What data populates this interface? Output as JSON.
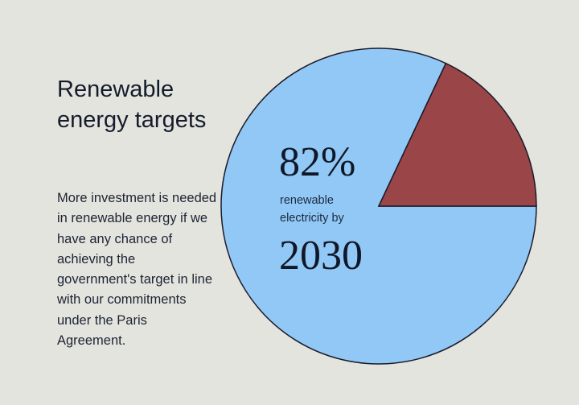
{
  "title": "Renewable energy targets",
  "description": "More investment is needed in renewable energy if we have any chance of achieving the government's target in line with our commitments under the Paris Agreement.",
  "chart_data": {
    "type": "pie",
    "slices": [
      {
        "value": 82,
        "color": "#92c8f5"
      },
      {
        "value": 18,
        "color": "#9a4548"
      }
    ],
    "annotation": {
      "value": "82%",
      "text": "renewable electricity by",
      "year": "2030"
    },
    "outline_color": "#1a1a2a"
  }
}
